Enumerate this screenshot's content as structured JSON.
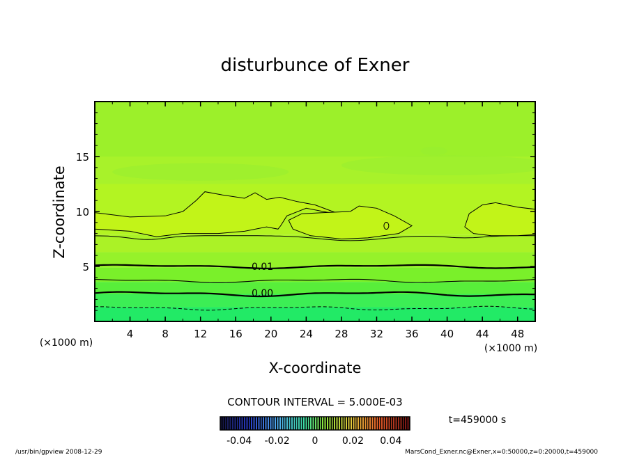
{
  "chart_data": {
    "type": "heatmap",
    "title": "disturbunce of Exner",
    "xlabel": "X-coordinate",
    "ylabel": "Z-coordinate",
    "x_unit_label": "(×1000 m)",
    "x_unit_label_right": "(×1000 m)",
    "xlim": [
      0,
      50
    ],
    "ylim": [
      0,
      20
    ],
    "x_ticks": [
      4,
      8,
      12,
      16,
      20,
      24,
      28,
      32,
      36,
      40,
      44,
      48
    ],
    "y_ticks": [
      5,
      10,
      15
    ],
    "contour_labels": [
      {
        "text": "0.01",
        "x": 17.8,
        "z": 5.0
      },
      {
        "text": "0.00",
        "x": 17.8,
        "z": 2.6
      }
    ],
    "contour_interval_label": "CONTOUR INTERVAL = 5.000E-03",
    "colorbar": {
      "min": -0.05,
      "max": 0.05,
      "tick_values": [
        -0.04,
        -0.02,
        0,
        0.02,
        0.04
      ],
      "tick_labels": [
        "-0.04",
        "-0.02",
        "0",
        "0.02",
        "0.04"
      ]
    },
    "bands": [
      {
        "z0": 0.0,
        "z1": 1.3,
        "color": "#22ea66"
      },
      {
        "z0": 1.3,
        "z1": 2.5,
        "color": "#3cee55"
      },
      {
        "z0": 2.5,
        "z1": 3.6,
        "color": "#58ee3a"
      },
      {
        "z0": 3.6,
        "z1": 4.9,
        "color": "#7af02a"
      },
      {
        "z0": 4.9,
        "z1": 6.3,
        "color": "#96f22a"
      },
      {
        "z0": 6.3,
        "z1": 7.9,
        "color": "#abf226"
      },
      {
        "z0": 7.9,
        "z1": 12.5,
        "color": "#b3f422"
      },
      {
        "z0": 12.5,
        "z1": 15.0,
        "color": "#a8f22a"
      },
      {
        "z0": 15.0,
        "z1": 20.0,
        "color": "#9cf02a"
      }
    ]
  },
  "time_label": "t=459000 s",
  "footer": {
    "left": "/usr/bin/gpview   2008-12-29",
    "right": "MarsCond_Exner.nc@Exner,x=0:50000,z=0:20000,t=459000"
  }
}
